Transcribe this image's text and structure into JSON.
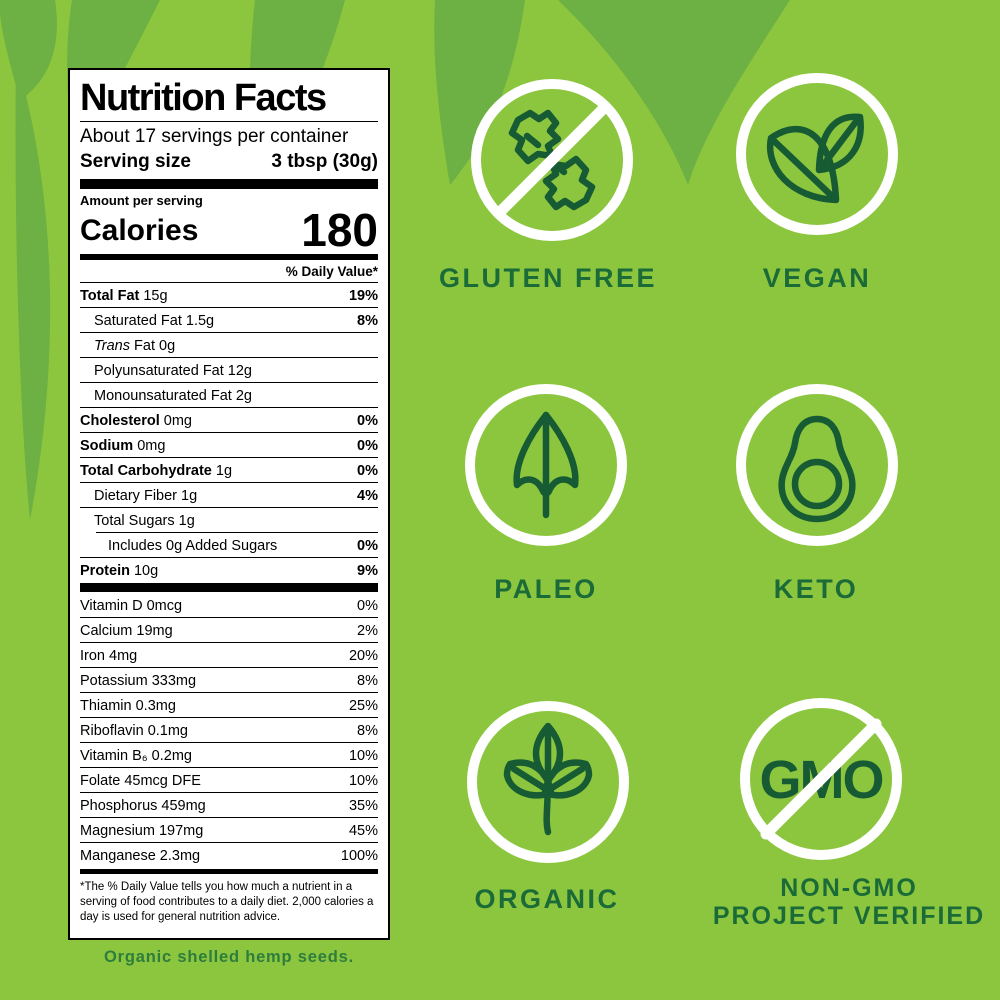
{
  "background": {
    "base_color": "#8CC63F",
    "stripe_color": "#6DB043"
  },
  "nutrition_label": {
    "title": "Nutrition Facts",
    "servings_per_container": "About 17 servings per container",
    "serving_size_label": "Serving size",
    "serving_size_value": "3 tbsp (30g)",
    "amount_per_serving": "Amount per serving",
    "calories_label": "Calories",
    "calories_value": "180",
    "daily_value_header": "% Daily Value*",
    "main_rows": [
      {
        "bold": "Total Fat",
        "text": " 15g",
        "percent": "19%",
        "percent_bold": true,
        "indent": 0
      },
      {
        "text": "Saturated Fat 1.5g",
        "percent": "8%",
        "percent_bold": true,
        "indent": 1
      },
      {
        "italic": "Trans",
        "text": " Fat 0g",
        "percent": "",
        "indent": 1
      },
      {
        "text": "Polyunsaturated Fat 12g",
        "percent": "",
        "indent": 1
      },
      {
        "text": "Monounsaturated Fat 2g",
        "percent": "",
        "indent": 1
      },
      {
        "bold": "Cholesterol",
        "text": " 0mg",
        "percent": "0%",
        "percent_bold": true,
        "indent": 0
      },
      {
        "bold": "Sodium",
        "text": " 0mg",
        "percent": "0%",
        "percent_bold": true,
        "indent": 0
      },
      {
        "bold": "Total Carbohydrate",
        "text": " 1g",
        "percent": "0%",
        "percent_bold": true,
        "indent": 0
      },
      {
        "text": "Dietary Fiber 1g",
        "percent": "4%",
        "percent_bold": true,
        "indent": 1
      },
      {
        "text": "Total Sugars 1g",
        "percent": "",
        "indent": 1
      },
      {
        "text": "Includes 0g Added Sugars",
        "percent": "0%",
        "percent_bold": true,
        "indent": 2
      },
      {
        "bold": "Protein",
        "text": " 10g",
        "percent": "9%",
        "percent_bold": true,
        "indent": 0
      }
    ],
    "vitamin_rows": [
      {
        "text": "Vitamin D 0mcg",
        "percent": "0%"
      },
      {
        "text": "Calcium 19mg",
        "percent": "2%"
      },
      {
        "text": "Iron 4mg",
        "percent": "20%"
      },
      {
        "text": "Potassium 333mg",
        "percent": "8%"
      },
      {
        "text": "Thiamin 0.3mg",
        "percent": "25%"
      },
      {
        "text": "Riboflavin 0.1mg",
        "percent": "8%"
      },
      {
        "text": "Vitamin B₆ 0.2mg",
        "percent": "10%"
      },
      {
        "text": "Folate 45mcg DFE",
        "percent": "10%"
      },
      {
        "text": "Phosphorus 459mg",
        "percent": "35%"
      },
      {
        "text": "Magnesium 197mg",
        "percent": "45%"
      },
      {
        "text": "Manganese 2.3mg",
        "percent": "100%"
      }
    ],
    "footnote": "*The % Daily Value tells you how much a nutrient in a serving of food contributes to a daily diet. 2,000 calories a day is used for general nutrition advice."
  },
  "badges": [
    {
      "id": "gluten-free",
      "label": "GLUTEN FREE",
      "icon": "wheat-crossed-icon"
    },
    {
      "id": "vegan",
      "label": "VEGAN",
      "icon": "leaves-icon"
    },
    {
      "id": "paleo",
      "label": "PALEO",
      "icon": "arrowhead-icon"
    },
    {
      "id": "keto",
      "label": "KETO",
      "icon": "avocado-icon"
    },
    {
      "id": "organic",
      "label": "ORGANIC",
      "icon": "plant-icon"
    },
    {
      "id": "non-gmo",
      "label_lines": [
        "NON-GMO",
        "PROJECT VERIFIED"
      ],
      "icon": "gmo-crossed-icon",
      "icon_text": "GMO"
    }
  ],
  "caption": "Organic shelled hemp seeds.",
  "colors": {
    "badge_text": "#1A6B38",
    "icon_stroke": "#175B34",
    "caption_text": "#2E7D3C"
  }
}
